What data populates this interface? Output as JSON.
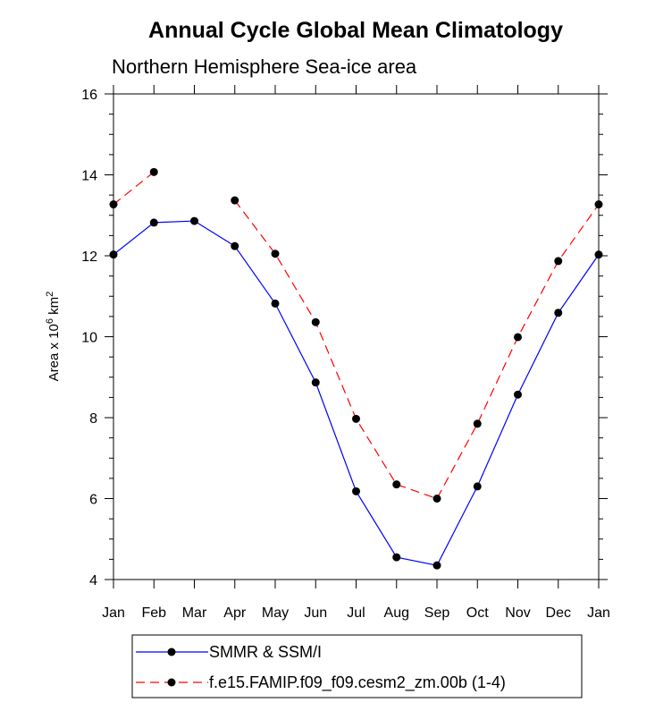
{
  "chart_data": {
    "type": "line",
    "title": "Annual Cycle Global Mean Climatology",
    "subtitle": "Northern Hemisphere Sea-ice area",
    "ylabel_main": "Area x 10",
    "ylabel_sup1": "6",
    "ylabel_unit": " km",
    "ylabel_sup2": "2",
    "xlabel": "",
    "categories": [
      "Jan",
      "Feb",
      "Mar",
      "Apr",
      "May",
      "Jun",
      "Jul",
      "Aug",
      "Sep",
      "Oct",
      "Nov",
      "Dec",
      "Jan"
    ],
    "ylim": [
      4,
      16
    ],
    "yticks": [
      4,
      6,
      8,
      10,
      12,
      14,
      16
    ],
    "series": [
      {
        "name": "SMMR & SSM/I",
        "color": "#0000ff",
        "dash": "solid",
        "values": [
          12.03,
          12.82,
          12.86,
          12.24,
          10.82,
          8.87,
          6.18,
          4.55,
          4.35,
          6.3,
          8.57,
          10.59,
          12.03
        ]
      },
      {
        "name": "f.e15.FAMIP.f09_f09.cesm2_zm.00b (1-4)",
        "color": "#ff0000",
        "dash": "dashed",
        "values": [
          13.27,
          14.07,
          null,
          13.37,
          12.05,
          10.36,
          7.97,
          6.35,
          6.0,
          7.85,
          9.99,
          11.87,
          13.27
        ]
      }
    ],
    "legend_position": "bottom"
  }
}
